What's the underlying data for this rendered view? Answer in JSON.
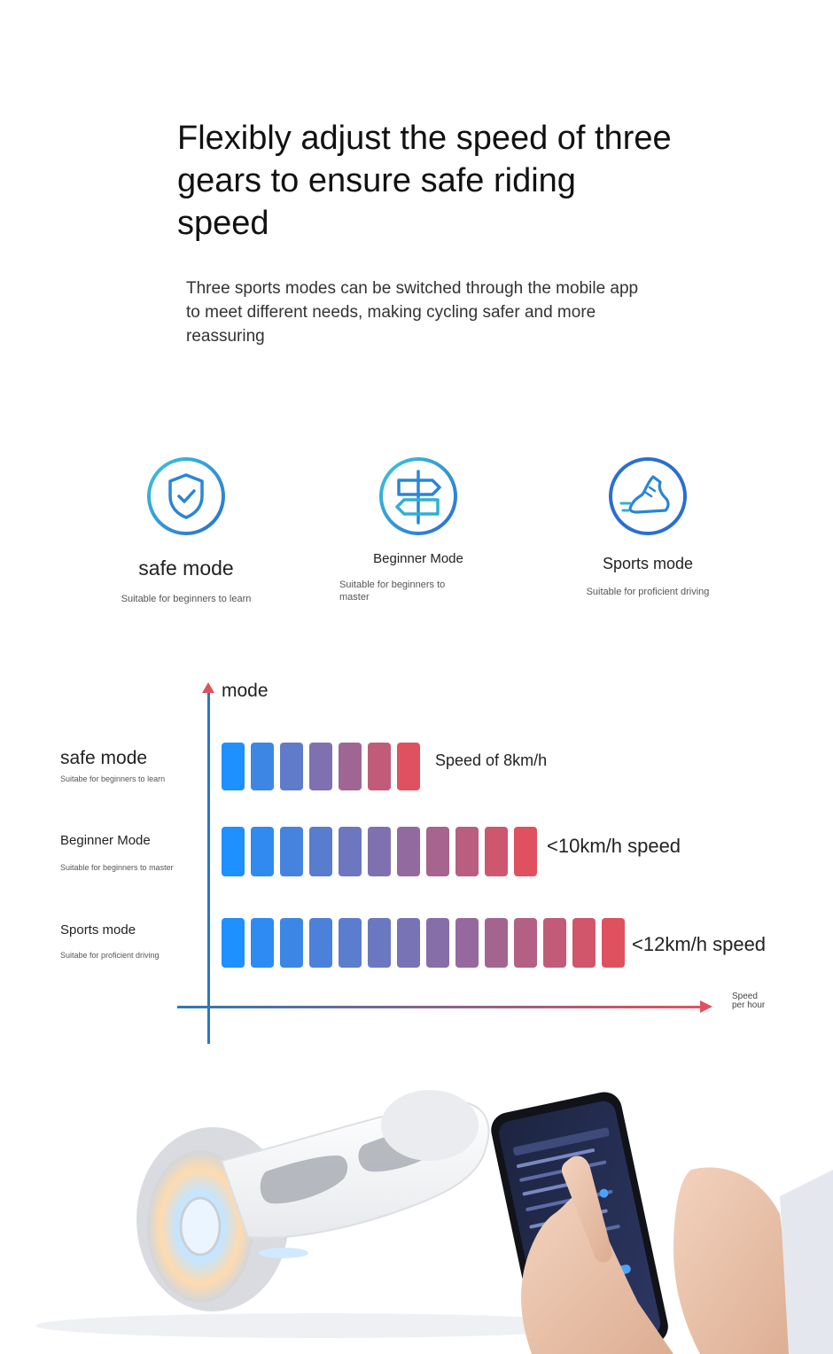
{
  "headline": "Flexibly adjust the speed of three gears to ensure safe riding speed",
  "subheadline": "Three sports modes can be switched through the mobile app to meet different needs, making cycling safer and more reassuring",
  "modes": [
    {
      "title": "safe mode",
      "desc": "Suitable for beginners to learn",
      "icon": "shield-check-icon"
    },
    {
      "title": "Beginner Mode",
      "desc": "Suitable for beginners to master",
      "icon": "signpost-icon"
    },
    {
      "title": "Sports mode",
      "desc": "Suitable for proficient driving",
      "icon": "running-shoe-icon"
    }
  ],
  "chart": {
    "y_axis_label": "mode",
    "x_axis_label": "Speed per hour",
    "rows": [
      {
        "title": "safe mode",
        "desc": "Suitabe for beginners to learn",
        "speed_label": "Speed of 8km/h",
        "segments": 7
      },
      {
        "title": "Beginner Mode",
        "desc": "Suitable for beginners to master",
        "speed_label": "<10km/h speed",
        "segments": 11
      },
      {
        "title": "Sports mode",
        "desc": "Suitabe for proficient driving",
        "speed_label": "<12km/h speed",
        "segments": 14
      }
    ]
  },
  "colors": {
    "accent_blue": "#1e90ff",
    "accent_red": "#e0515f",
    "icon_blue": "#2a86d6",
    "icon_teal": "#3cb8d8"
  },
  "photo": {
    "objects": [
      "hoverboard",
      "smartphone-app",
      "hands"
    ]
  }
}
